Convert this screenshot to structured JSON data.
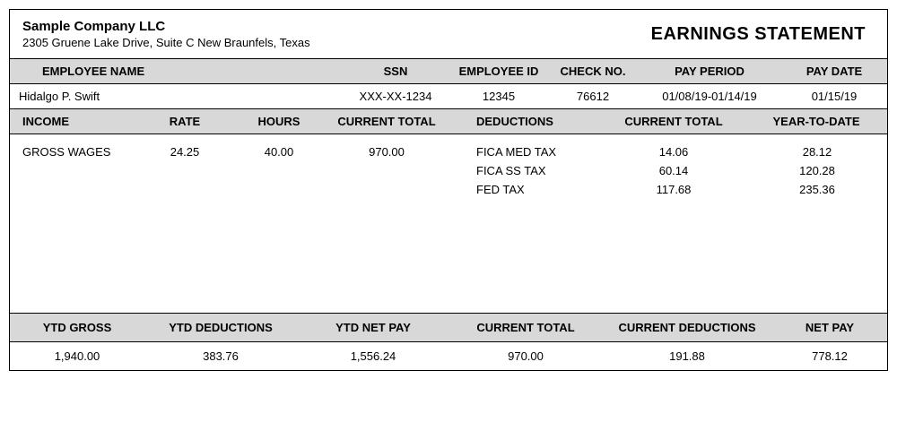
{
  "header": {
    "company_name": "Sample Company LLC",
    "company_address": "2305 Gruene Lake Drive, Suite C New Braunfels, Texas",
    "title": "EARNINGS STATEMENT"
  },
  "emp_headers": {
    "name": "EMPLOYEE NAME",
    "ssn": "SSN",
    "empid": "EMPLOYEE ID",
    "check": "CHECK NO.",
    "period": "PAY PERIOD",
    "paydate": "PAY DATE"
  },
  "employee": {
    "name": "Hidalgo P. Swift",
    "ssn": "XXX-XX-1234",
    "empid": "12345",
    "check": "76612",
    "period": "01/08/19-01/14/19",
    "paydate": "01/15/19"
  },
  "mid_headers": {
    "income": "INCOME",
    "rate": "RATE",
    "hours": "HOURS",
    "current_total": "CURRENT TOTAL",
    "deductions": "DEDUCTIONS",
    "year_to_date": "YEAR-TO-DATE"
  },
  "income": {
    "label": "GROSS WAGES",
    "rate": "24.25",
    "hours": "40.00",
    "current_total": "970.00"
  },
  "deductions": [
    {
      "name": "FICA MED TAX",
      "current": "14.06",
      "ytd": "28.12"
    },
    {
      "name": "FICA SS TAX",
      "current": "60.14",
      "ytd": "120.28"
    },
    {
      "name": "FED TAX",
      "current": "117.68",
      "ytd": "235.36"
    }
  ],
  "sum_headers": {
    "ytd_gross": "YTD GROSS",
    "ytd_ded": "YTD DEDUCTIONS",
    "ytd_net": "YTD NET PAY",
    "cur_total": "CURRENT TOTAL",
    "cur_ded": "CURRENT DEDUCTIONS",
    "net_pay": "NET PAY"
  },
  "summary": {
    "ytd_gross": "1,940.00",
    "ytd_ded": "383.76",
    "ytd_net": "1,556.24",
    "cur_total": "970.00",
    "cur_ded": "191.88",
    "net_pay": "778.12"
  }
}
